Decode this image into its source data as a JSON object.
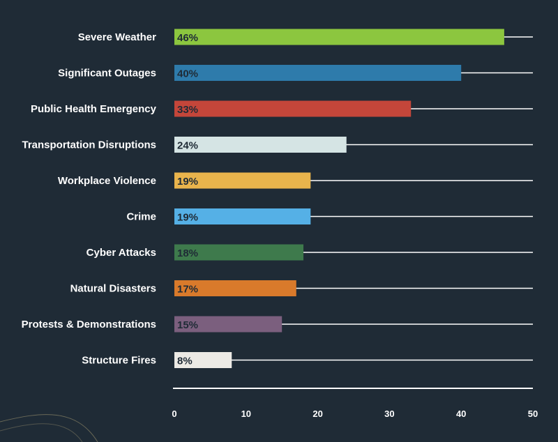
{
  "chart_data": {
    "type": "bar",
    "orientation": "horizontal",
    "categories": [
      "Severe Weather",
      "Significant Outages",
      "Public Health Emergency",
      "Transportation Disruptions",
      "Workplace Violence",
      "Crime",
      "Cyber Attacks",
      "Natural Disasters",
      "Protests & Demonstrations",
      "Structure Fires"
    ],
    "values": [
      46,
      40,
      33,
      24,
      19,
      19,
      18,
      17,
      15,
      8
    ],
    "value_labels": [
      "46%",
      "40%",
      "33%",
      "24%",
      "19%",
      "19%",
      "18%",
      "17%",
      "15%",
      "8%"
    ],
    "colors": [
      "#8cc63f",
      "#2e7bab",
      "#c4463a",
      "#d5e4e4",
      "#e9b44c",
      "#55b0e6",
      "#3e7a4c",
      "#d97a2b",
      "#7b5f7e",
      "#eceae5"
    ],
    "x_ticks": [
      "0",
      "10",
      "20",
      "30",
      "40",
      "50"
    ],
    "xlim": [
      0,
      50
    ],
    "title": "",
    "xlabel": "",
    "ylabel": "",
    "grid": true,
    "background": "#1f2b36",
    "line_color": "#ffffff"
  }
}
